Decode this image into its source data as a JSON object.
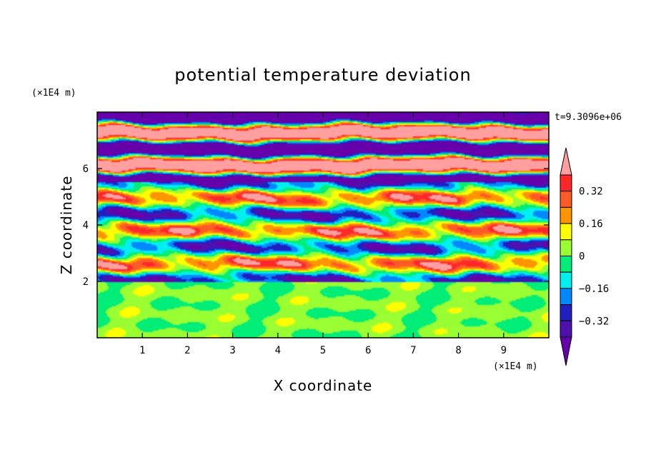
{
  "chart_data": {
    "type": "heatmap",
    "title": "potential temperature deviation",
    "xlabel": "X coordinate",
    "ylabel": "Z coordinate",
    "x_unit_label": "(×1E4 m)",
    "y_unit_label": "(×1E4 m)",
    "time_label": "t=9.3096e+06",
    "xlim": [
      0,
      10
    ],
    "ylim": [
      0,
      8
    ],
    "x_ticks": [
      "1",
      "2",
      "3",
      "4",
      "5",
      "6",
      "7",
      "8",
      "9"
    ],
    "y_ticks": [
      "2",
      "4",
      "6"
    ],
    "colorbar": {
      "labels": [
        "0.32",
        "0.16",
        "0",
        "−0.16",
        "−0.32"
      ],
      "label_values": [
        0.32,
        0.16,
        0,
        -0.16,
        -0.32
      ],
      "levels": [
        0.4,
        0.32,
        0.24,
        0.16,
        0.08,
        0,
        -0.08,
        -0.16,
        -0.24,
        -0.32,
        -0.4
      ],
      "bands_top_to_bottom": [
        "#ff9fa0",
        "#ff2828",
        "#ff5a28",
        "#ff9600",
        "#ffff00",
        "#99ff33",
        "#00ee77",
        "#00f0f0",
        "#0088ff",
        "#2020c0",
        "#5010b0",
        "#6600aa"
      ],
      "extend": "both"
    },
    "field_layers": [
      {
        "z_range": [
          0,
          2
        ],
        "description_values": [
          -0.06,
          0.08
        ],
        "dominant_colors": [
          "#00ee77",
          "#99ff33"
        ]
      },
      {
        "z_range": [
          2,
          5.5
        ],
        "description_values": [
          -0.4,
          0.4
        ],
        "dominant_colors": [
          "#2020c0",
          "#0088ff",
          "#00f0f0",
          "#00ee77",
          "#99ff33",
          "#ffff00",
          "#ff9600",
          "#ff2828"
        ]
      },
      {
        "z_range": [
          5.5,
          8
        ],
        "description_values": [
          -0.4,
          0.4
        ],
        "dominant_colors": [
          "#ff9fa0",
          "#6600aa"
        ]
      }
    ]
  }
}
